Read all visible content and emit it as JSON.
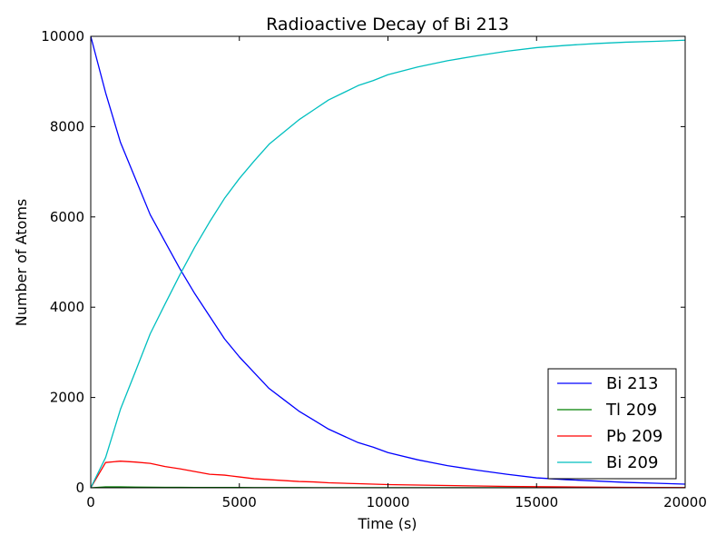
{
  "chart_data": {
    "type": "line",
    "title": "Radioactive Decay of Bi 213",
    "xlabel": "Time (s)",
    "ylabel": "Number of Atoms",
    "xlim": [
      0,
      20000
    ],
    "ylim": [
      0,
      10000
    ],
    "x_ticks": [
      0,
      5000,
      10000,
      15000,
      20000
    ],
    "y_ticks": [
      0,
      2000,
      4000,
      6000,
      8000,
      10000
    ],
    "grid": false,
    "legend_position": "lower-right",
    "x": [
      0,
      500,
      1000,
      1500,
      2000,
      2500,
      3000,
      3500,
      4000,
      4500,
      5000,
      5500,
      6000,
      6500,
      7000,
      7500,
      8000,
      8500,
      9000,
      9500,
      10000,
      11000,
      12000,
      13000,
      14000,
      15000,
      16000,
      17000,
      18000,
      19000,
      20000
    ],
    "series": [
      {
        "name": "Bi 213",
        "color": "#0000ff",
        "values": [
          10000,
          8750,
          7650,
          6850,
          6050,
          5450,
          4850,
          4300,
          3800,
          3300,
          2900,
          2550,
          2200,
          1950,
          1700,
          1500,
          1300,
          1150,
          1000,
          900,
          780,
          620,
          490,
          390,
          300,
          220,
          180,
          150,
          120,
          100,
          80
        ]
      },
      {
        "name": "Tl 209",
        "color": "#008000",
        "values": [
          0,
          20,
          20,
          15,
          12,
          10,
          10,
          8,
          8,
          6,
          6,
          5,
          5,
          4,
          4,
          3,
          3,
          3,
          2,
          2,
          2,
          2,
          1,
          1,
          1,
          1,
          1,
          0,
          0,
          0,
          0
        ]
      },
      {
        "name": "Pb 209",
        "color": "#ff0000",
        "values": [
          0,
          560,
          590,
          570,
          540,
          470,
          420,
          360,
          300,
          280,
          240,
          200,
          180,
          160,
          140,
          130,
          110,
          100,
          90,
          80,
          70,
          60,
          50,
          40,
          30,
          25,
          20,
          15,
          10,
          8,
          5
        ]
      },
      {
        "name": "Bi 209",
        "color": "#00bfbf",
        "values": [
          0,
          670,
          1740,
          2570,
          3410,
          4070,
          4720,
          5330,
          5890,
          6410,
          6850,
          7240,
          7610,
          7880,
          8150,
          8370,
          8590,
          8750,
          8910,
          9020,
          9150,
          9320,
          9460,
          9570,
          9670,
          9750,
          9800,
          9840,
          9870,
          9890,
          9915
        ]
      }
    ]
  }
}
